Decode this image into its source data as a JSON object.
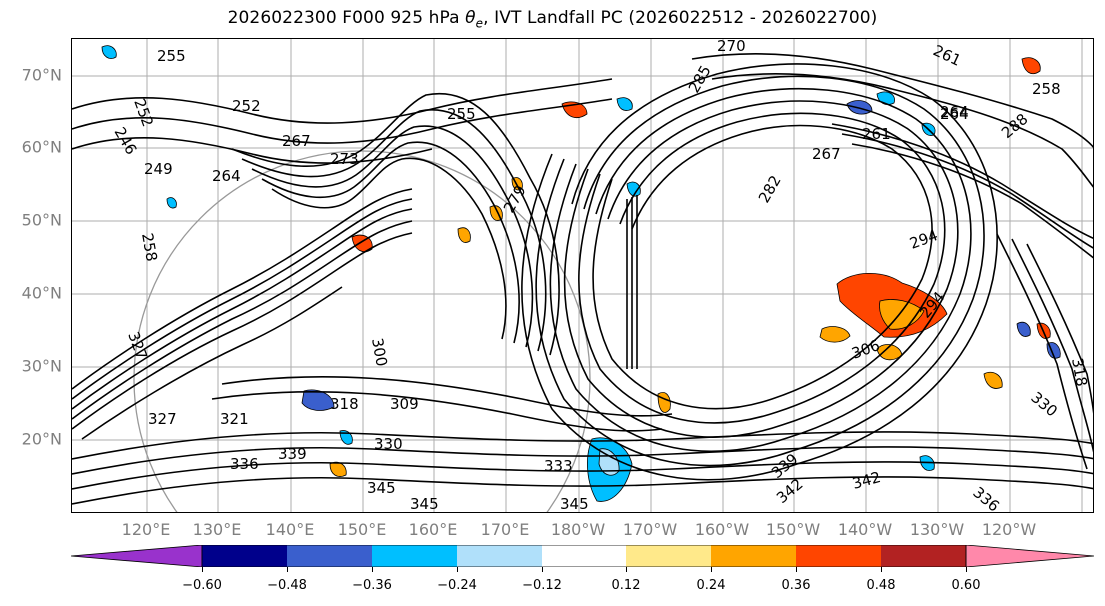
{
  "title": "2026022300 F000 925 hPa θe, IVT Landfall PC (2026022512 - 2026022700)",
  "title_parts": {
    "prefix": "2026022300 F000 925 hPa ",
    "theta": "θ",
    "theta_sub": "e",
    "suffix": ", IVT Landfall PC (2026022512 - 2026022700)"
  },
  "lat_labels": [
    "70°N",
    "60°N",
    "50°N",
    "40°N",
    "30°N",
    "20°N"
  ],
  "lon_labels": [
    "120°E",
    "130°E",
    "140°E",
    "150°E",
    "160°E",
    "170°E",
    "180°W",
    "170°W",
    "160°W",
    "150°W",
    "140°W",
    "130°W",
    "120°W"
  ],
  "colorbar": {
    "ticks": [
      "−0.60",
      "−0.48",
      "−0.36",
      "−0.24",
      "−0.12",
      "0.12",
      "0.24",
      "0.36",
      "0.48",
      "0.60"
    ],
    "colors": [
      "#9932cc",
      "#00008b",
      "#3a5fcd",
      "#00bfff",
      "#b0e0fa",
      "#ffffff",
      "#ffe98a",
      "#ffa500",
      "#ff4500",
      "#b22222",
      "#ff88aa"
    ]
  },
  "contour_labels": [
    "255",
    "252",
    "246",
    "249",
    "264",
    "258",
    "252",
    "267",
    "273",
    "255",
    "285",
    "270",
    "261",
    "264",
    "261",
    "258",
    "282",
    "279",
    "294",
    "294",
    "306",
    "300",
    "318",
    "321",
    "309",
    "330",
    "339",
    "336",
    "345",
    "345",
    "333",
    "345",
    "339",
    "342",
    "342",
    "336",
    "327",
    "327",
    "330",
    "318",
    "264",
    "267",
    "288"
  ]
}
